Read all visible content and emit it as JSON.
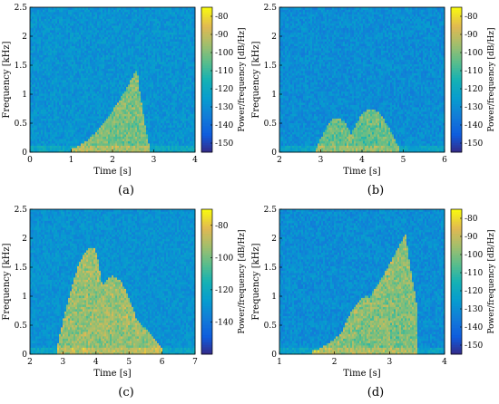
{
  "chart_data": [
    {
      "type": "heatmap",
      "label": "(a)",
      "xlabel": "Time [s]",
      "ylabel": "Frequency [kHz]",
      "colorbar_label": "Power/frequency [dB/Hz]",
      "xlim": [
        0,
        4
      ],
      "ylim": [
        0,
        2.5
      ],
      "xticks": [
        0,
        1,
        2,
        3,
        4
      ],
      "yticks": [
        0,
        0.5,
        1,
        1.5,
        2,
        2.5
      ],
      "clim": [
        -155,
        -75
      ],
      "cticks": [
        -80,
        -90,
        -100,
        -110,
        -120,
        -130,
        -140,
        -150
      ],
      "background_level_db": -128,
      "features": [
        {
          "kind": "chirp",
          "start": [
            1.0,
            0.02
          ],
          "peak": [
            2.6,
            1.4
          ],
          "end": [
            2.9,
            0.02
          ],
          "level_db": -97
        }
      ]
    },
    {
      "type": "heatmap",
      "label": "(b)",
      "xlabel": "Time [s]",
      "ylabel": "Frequency [kHz]",
      "colorbar_label": "Power/frequency [dB/Hz]",
      "xlim": [
        2,
        6
      ],
      "ylim": [
        0,
        2.5
      ],
      "xticks": [
        2,
        3,
        4,
        5,
        6
      ],
      "yticks": [
        0,
        0.5,
        1,
        1.5,
        2,
        2.5
      ],
      "clim": [
        -155,
        -75
      ],
      "cticks": [
        -80,
        -90,
        -100,
        -110,
        -120,
        -130,
        -140,
        -150
      ],
      "background_level_db": -130,
      "features": [
        {
          "kind": "hump",
          "start": [
            2.9,
            0.02
          ],
          "peak": [
            3.4,
            0.55
          ],
          "end": [
            3.9,
            0.02
          ],
          "level_db": -100
        },
        {
          "kind": "hump",
          "start": [
            3.6,
            0.02
          ],
          "peak": [
            4.2,
            0.7
          ],
          "end": [
            4.9,
            0.02
          ],
          "level_db": -100
        }
      ]
    },
    {
      "type": "heatmap",
      "label": "(c)",
      "xlabel": "Time [s]",
      "ylabel": "Frequency [kHz]",
      "colorbar_label": "Power/frequency [dB/Hz]",
      "xlim": [
        2,
        7
      ],
      "ylim": [
        0,
        2.5
      ],
      "xticks": [
        2,
        3,
        4,
        5,
        6,
        7
      ],
      "yticks": [
        0,
        0.5,
        1,
        1.5,
        2,
        2.5
      ],
      "clim": [
        -160,
        -70
      ],
      "cticks": [
        -80,
        -100,
        -120,
        -140
      ],
      "background_level_db": -130,
      "features": [
        {
          "kind": "hump",
          "start": [
            2.8,
            0.02
          ],
          "peak": [
            3.9,
            1.8
          ],
          "end": [
            4.4,
            0.02
          ],
          "level_db": -90
        },
        {
          "kind": "hump",
          "start": [
            3.6,
            0.02
          ],
          "peak": [
            4.5,
            1.3
          ],
          "end": [
            5.5,
            0.02
          ],
          "level_db": -90
        },
        {
          "kind": "hump",
          "start": [
            3.2,
            0.02
          ],
          "peak": [
            4.6,
            0.7
          ],
          "end": [
            6.0,
            0.05
          ],
          "level_db": -92
        }
      ]
    },
    {
      "type": "heatmap",
      "label": "(d)",
      "xlabel": "Time [s]",
      "ylabel": "Frequency [kHz]",
      "colorbar_label": "Power/frequency [dB/Hz]",
      "xlim": [
        1,
        4
      ],
      "ylim": [
        0,
        2.5
      ],
      "xticks": [
        1,
        2,
        3,
        4
      ],
      "yticks": [
        0,
        0.5,
        1,
        1.5,
        2,
        2.5
      ],
      "clim": [
        -155,
        -75
      ],
      "cticks": [
        -80,
        -90,
        -100,
        -110,
        -120,
        -130,
        -140,
        -150
      ],
      "background_level_db": -130,
      "features": [
        {
          "kind": "chirp",
          "start": [
            1.6,
            0.02
          ],
          "peak": [
            3.3,
            2.05
          ],
          "end": [
            3.5,
            0.8
          ],
          "level_db": -95
        },
        {
          "kind": "hump",
          "start": [
            2.0,
            0.02
          ],
          "peak": [
            2.6,
            0.95
          ],
          "end": [
            3.1,
            0.02
          ],
          "level_db": -100
        }
      ]
    }
  ]
}
